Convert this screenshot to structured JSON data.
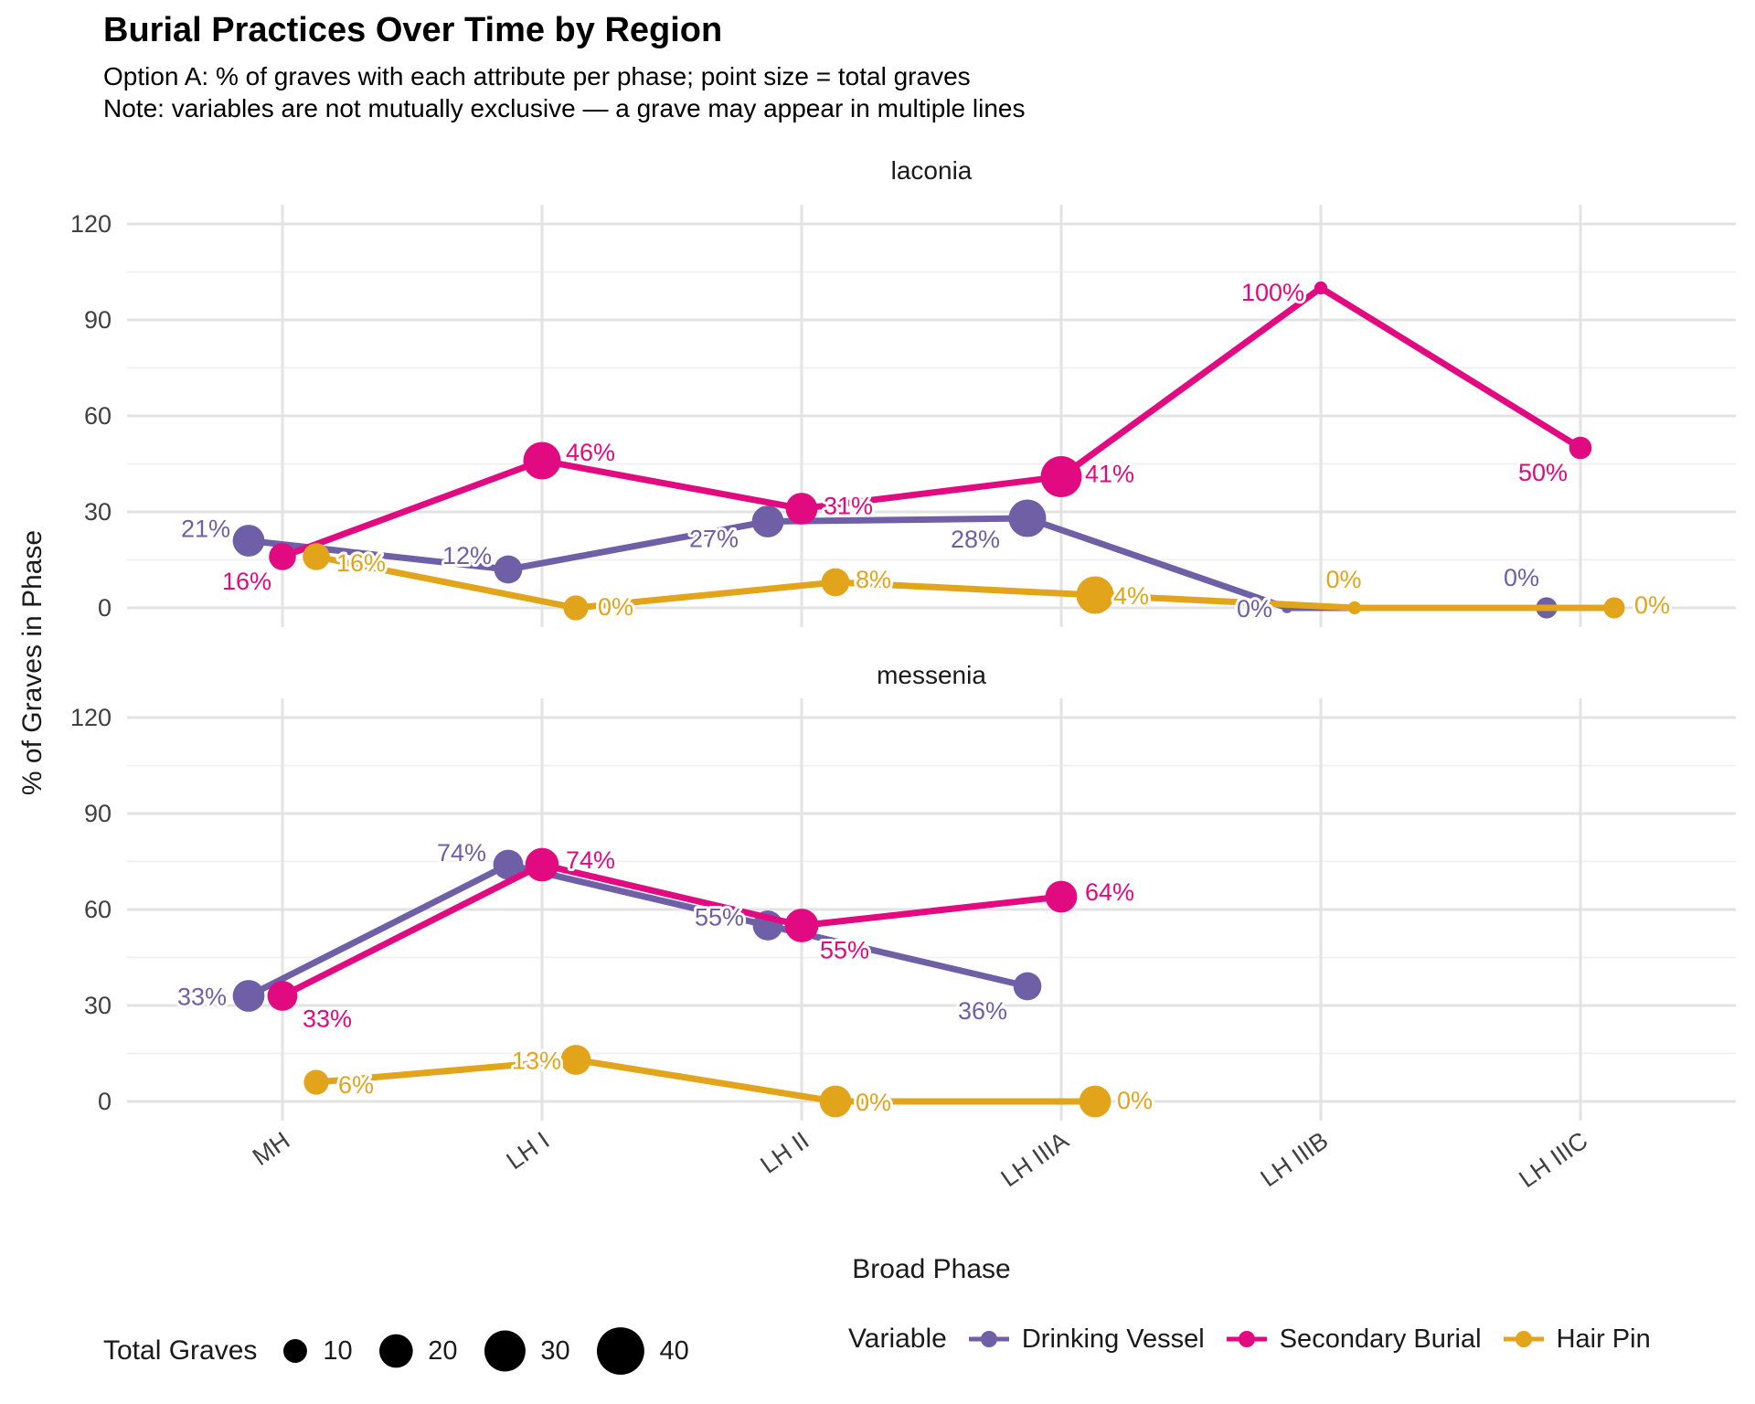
{
  "title": "Burial Practices Over Time by Region",
  "subtitle_line1": "Option A: % of graves with each attribute per phase; point size = total graves",
  "subtitle_line2": "Note: variables are not mutually exclusive — a grave may appear in multiple lines",
  "axes": {
    "x_title": "Broad Phase",
    "y_title": "% of Graves in Phase",
    "x_ticks": [
      "MH",
      "LH I",
      "LH II",
      "LH IIIA",
      "LH IIIB",
      "LH IIIC"
    ],
    "y_ticks": [
      "0",
      "30",
      "60",
      "90",
      "120"
    ]
  },
  "legend": {
    "size": {
      "title": "Total Graves",
      "values": [
        10,
        20,
        30,
        40
      ]
    },
    "color": {
      "title": "Variable",
      "entries": [
        {
          "label": "Drinking Vessel",
          "color": "#6E5FA7"
        },
        {
          "label": "Secondary Burial",
          "color": "#E20A80"
        },
        {
          "label": "Hair Pin",
          "color": "#E2A41B"
        }
      ]
    }
  },
  "chart_data": {
    "type": "line",
    "title": "Burial Practices Over Time by Region",
    "x_categories": [
      "MH",
      "LH I",
      "LH II",
      "LH IIIA",
      "LH IIIB",
      "LH IIIC"
    ],
    "xlabel": "Broad Phase",
    "ylabel": "% of Graves in Phase",
    "ylim": [
      0,
      120
    ],
    "y_major_gridlines": [
      0,
      30,
      60,
      90,
      120
    ],
    "y_minor_gridlines": [
      15,
      45,
      75,
      105
    ],
    "grid": "on",
    "legend_position": "bottom",
    "point_size_meaning": "total graves in phase (size legend: 10, 20, 30, 40)",
    "facets": [
      {
        "name": "laconia",
        "series": [
          {
            "name": "Drinking Vessel",
            "color": "#6E5FA7",
            "pct": [
              21,
              12,
              27,
              28,
              0,
              0
            ],
            "total_graves_est": [
              18,
              14,
              18,
              25,
              2,
              8
            ]
          },
          {
            "name": "Secondary Burial",
            "color": "#E20A80",
            "pct": [
              16,
              46,
              31,
              41,
              100,
              50
            ],
            "total_graves_est": [
              13,
              25,
              18,
              30,
              3,
              9
            ]
          },
          {
            "name": "Hair Pin",
            "color": "#E2A41B",
            "pct": [
              16,
              0,
              8,
              4,
              0,
              0
            ],
            "total_graves_est": [
              13,
              11,
              14,
              25,
              3,
              8
            ]
          }
        ]
      },
      {
        "name": "messenia",
        "series": [
          {
            "name": "Drinking Vessel",
            "color": "#6E5FA7",
            "pct": [
              33,
              74,
              55,
              36,
              null,
              null
            ],
            "total_graves_est": [
              18,
              16,
              16,
              14,
              null,
              null
            ]
          },
          {
            "name": "Secondary Burial",
            "color": "#E20A80",
            "pct": [
              33,
              74,
              55,
              64,
              null,
              null
            ],
            "total_graves_est": [
              16,
              20,
              20,
              18,
              null,
              null
            ]
          },
          {
            "name": "Hair Pin",
            "color": "#E2A41B",
            "pct": [
              6,
              13,
              0,
              0,
              null,
              null
            ],
            "total_graves_est": [
              11,
              16,
              18,
              18,
              null,
              null
            ]
          }
        ]
      }
    ]
  }
}
